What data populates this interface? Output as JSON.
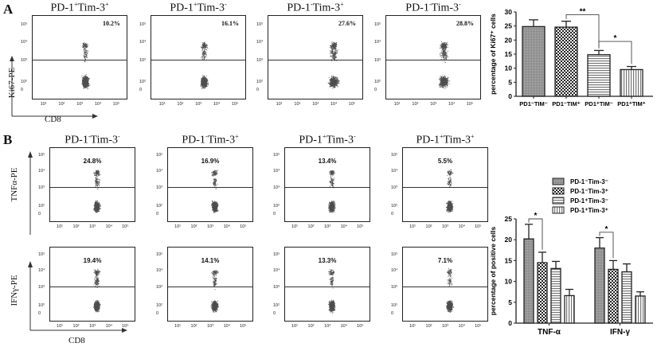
{
  "panels": {
    "A": {
      "letter": "A",
      "y_axis_label": "Ki67-PE",
      "x_axis_label": "CD8",
      "flow_plots": [
        {
          "title_base": "PD-1",
          "title_sup1": "+",
          "title_mid": "Tim-3",
          "title_sup2": "+",
          "percent": "10.2%"
        },
        {
          "title_base": "PD-1",
          "title_sup1": "+",
          "title_mid": "Tim-3",
          "title_sup2": "-",
          "percent": "16.1%"
        },
        {
          "title_base": "PD-1",
          "title_sup1": "-",
          "title_mid": "Tim-3",
          "title_sup2": "+",
          "percent": "27.6%"
        },
        {
          "title_base": "PD-1",
          "title_sup1": "-",
          "title_mid": "Tim-3",
          "title_sup2": "-",
          "percent": "28.8%"
        }
      ],
      "y_ticks": [
        "10⁵",
        "10⁴",
        "10³",
        "10²",
        "0"
      ],
      "x_ticks": [
        "10¹",
        "10²",
        "10³",
        "10⁴",
        "10⁵"
      ]
    },
    "B": {
      "letter": "B",
      "row_labels": [
        "TNFα-PE",
        "IFNγ-PE"
      ],
      "x_axis_label": "CD8",
      "column_titles": [
        {
          "title_base": "PD-1",
          "title_sup1": "-",
          "title_mid": "Tim-3",
          "title_sup2": "-"
        },
        {
          "title_base": "PD-1",
          "title_sup1": "-",
          "title_mid": "Tim-3",
          "title_sup2": "+"
        },
        {
          "title_base": "PD-1",
          "title_sup1": "+",
          "title_mid": "Tim-3",
          "title_sup2": "-"
        },
        {
          "title_base": "PD-1",
          "title_sup1": "+",
          "title_mid": "Tim-3",
          "title_sup2": "+"
        }
      ],
      "tnf_percents": [
        "24.8%",
        "16.9%",
        "13.4%",
        "5.5%"
      ],
      "ifn_percents": [
        "19.4%",
        "14.1%",
        "13.3%",
        "7.1%"
      ],
      "y_ticks": [
        "10⁵",
        "10⁴",
        "10³",
        "10²",
        "0"
      ],
      "x_ticks": [
        "10¹",
        "10²",
        "10³",
        "10⁴",
        "10⁵"
      ]
    }
  },
  "chart_data": [
    {
      "type": "bar",
      "title": "",
      "ylabel": "percentage of Ki67⁺ cells",
      "xlabel": "",
      "ylim": [
        0,
        30
      ],
      "yticks": [
        0,
        5,
        10,
        15,
        20,
        25,
        30
      ],
      "categories": [
        "PD1⁻TIM⁻",
        "PD1⁻TIM⁺",
        "PD1⁺TIM⁻",
        "PD1⁺TIM⁺"
      ],
      "values": [
        24.8,
        24.6,
        14.8,
        9.5
      ],
      "error_upper": [
        27.2,
        26.7,
        16.3,
        10.6
      ],
      "patterns": [
        "dense-grey",
        "checker",
        "horizontal-lines",
        "vertical-lines"
      ],
      "annotations": [
        {
          "from": 1,
          "to": 2,
          "label": "**"
        },
        {
          "from": 2,
          "to": 3,
          "label": "*"
        }
      ],
      "grid": false
    },
    {
      "type": "bar",
      "title": "",
      "ylabel": "percentage of positive cells",
      "xlabel": "",
      "ylim": [
        0,
        25
      ],
      "yticks": [
        0,
        5,
        10,
        15,
        20,
        25
      ],
      "categories": [
        "TNF-α",
        "IFN-γ"
      ],
      "series": [
        {
          "name": "PD-1⁻Tim-3⁻",
          "values": [
            20.2,
            18.0
          ],
          "error_upper": [
            23.7,
            20.5
          ],
          "pattern": "dense-grey"
        },
        {
          "name": "PD-1⁻Tim-3⁺",
          "values": [
            14.5,
            12.9
          ],
          "error_upper": [
            17.0,
            15.0
          ],
          "pattern": "checker"
        },
        {
          "name": "PD-1⁺Tim-3⁻",
          "values": [
            13.1,
            12.3
          ],
          "error_upper": [
            14.8,
            14.2
          ],
          "pattern": "horizontal-lines"
        },
        {
          "name": "PD-1⁺Tim-3⁺",
          "values": [
            6.6,
            6.5
          ],
          "error_upper": [
            8.1,
            7.5
          ],
          "pattern": "vertical-lines"
        }
      ],
      "annotations": [
        {
          "category": "TNF-α",
          "from_series": 0,
          "to_series": 1,
          "label": "*"
        },
        {
          "category": "IFN-γ",
          "from_series": 0,
          "to_series": 1,
          "label": "*"
        }
      ],
      "legend_position": "top-right",
      "grid": false
    }
  ]
}
